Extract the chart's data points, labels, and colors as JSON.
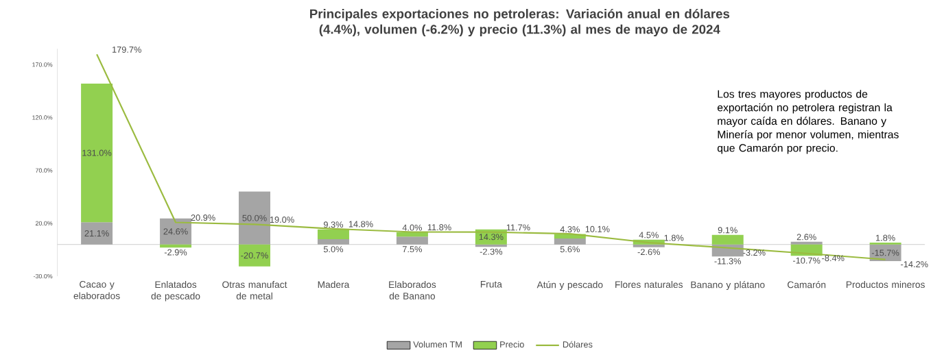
{
  "chart_data": {
    "type": "bar",
    "title": "Principales exportaciones no petroleras: Variación anual en dólares (4.4%), volumen (-6.2%)  y precio (11.3%) al mes de mayo de 2024",
    "categories": [
      "Cacao y elaborados",
      "Enlatados de pescado",
      "Otras manufact de metal",
      "Madera",
      "Elaborados de Banano",
      "Fruta",
      "Atún y pescado",
      "Flores naturales",
      "Banano y plátano",
      "Camarón",
      "Productos mineros"
    ],
    "stacked": true,
    "series": [
      {
        "name": "Volumen TM",
        "color": "#a5a5a5",
        "values": [
          21.1,
          24.6,
          50.0,
          5.0,
          7.5,
          -2.3,
          5.6,
          -2.6,
          -11.3,
          2.6,
          -15.7
        ],
        "value_labels": [
          "21.1%",
          "24.6%",
          "50.0%",
          "5.0%",
          "7.5%",
          "-2.3%",
          "5.6%",
          "-2.6%",
          "-11.3%",
          "2.6%",
          "-15.7%"
        ]
      },
      {
        "name": "Precio",
        "color": "#92d050",
        "values": [
          131.0,
          -2.9,
          -20.7,
          9.3,
          4.0,
          14.3,
          4.3,
          4.5,
          9.1,
          -10.7,
          1.8
        ],
        "value_labels": [
          "131.0%",
          "-2.9%",
          "-20.7%",
          "9.3%",
          "4.0%",
          "14.3%",
          "4.3%",
          "4.5%",
          "9.1%",
          "-10.7%",
          "1.8%"
        ]
      },
      {
        "name": "Dólares",
        "type": "line",
        "color": "#9bbb40",
        "values": [
          179.7,
          20.9,
          19.0,
          14.8,
          11.8,
          11.7,
          10.1,
          1.8,
          -3.2,
          -8.4,
          -14.2
        ],
        "value_labels": [
          "179.7%",
          "20.9%",
          "19.0%",
          "14.8%",
          "11.8%",
          "11.7%",
          "10.1%",
          "1.8%",
          "-3.2%",
          "-8.4%",
          "-14.2%"
        ]
      }
    ],
    "ylim": [
      -30,
      185
    ],
    "yticks": [
      {
        "value": -30,
        "label": "-30.0%"
      },
      {
        "value": 20,
        "label": "20.0%"
      },
      {
        "value": 70,
        "label": "70.0%"
      },
      {
        "value": 120,
        "label": "120.0%"
      },
      {
        "value": 170,
        "label": "170.0%"
      }
    ],
    "legend": "bottom",
    "annotations": [
      "Los tres mayores productos de exportación no petrolera registran la mayor caída en dólares. Banano y Minería por menor volumen, mientras que Camarón por precio."
    ]
  }
}
